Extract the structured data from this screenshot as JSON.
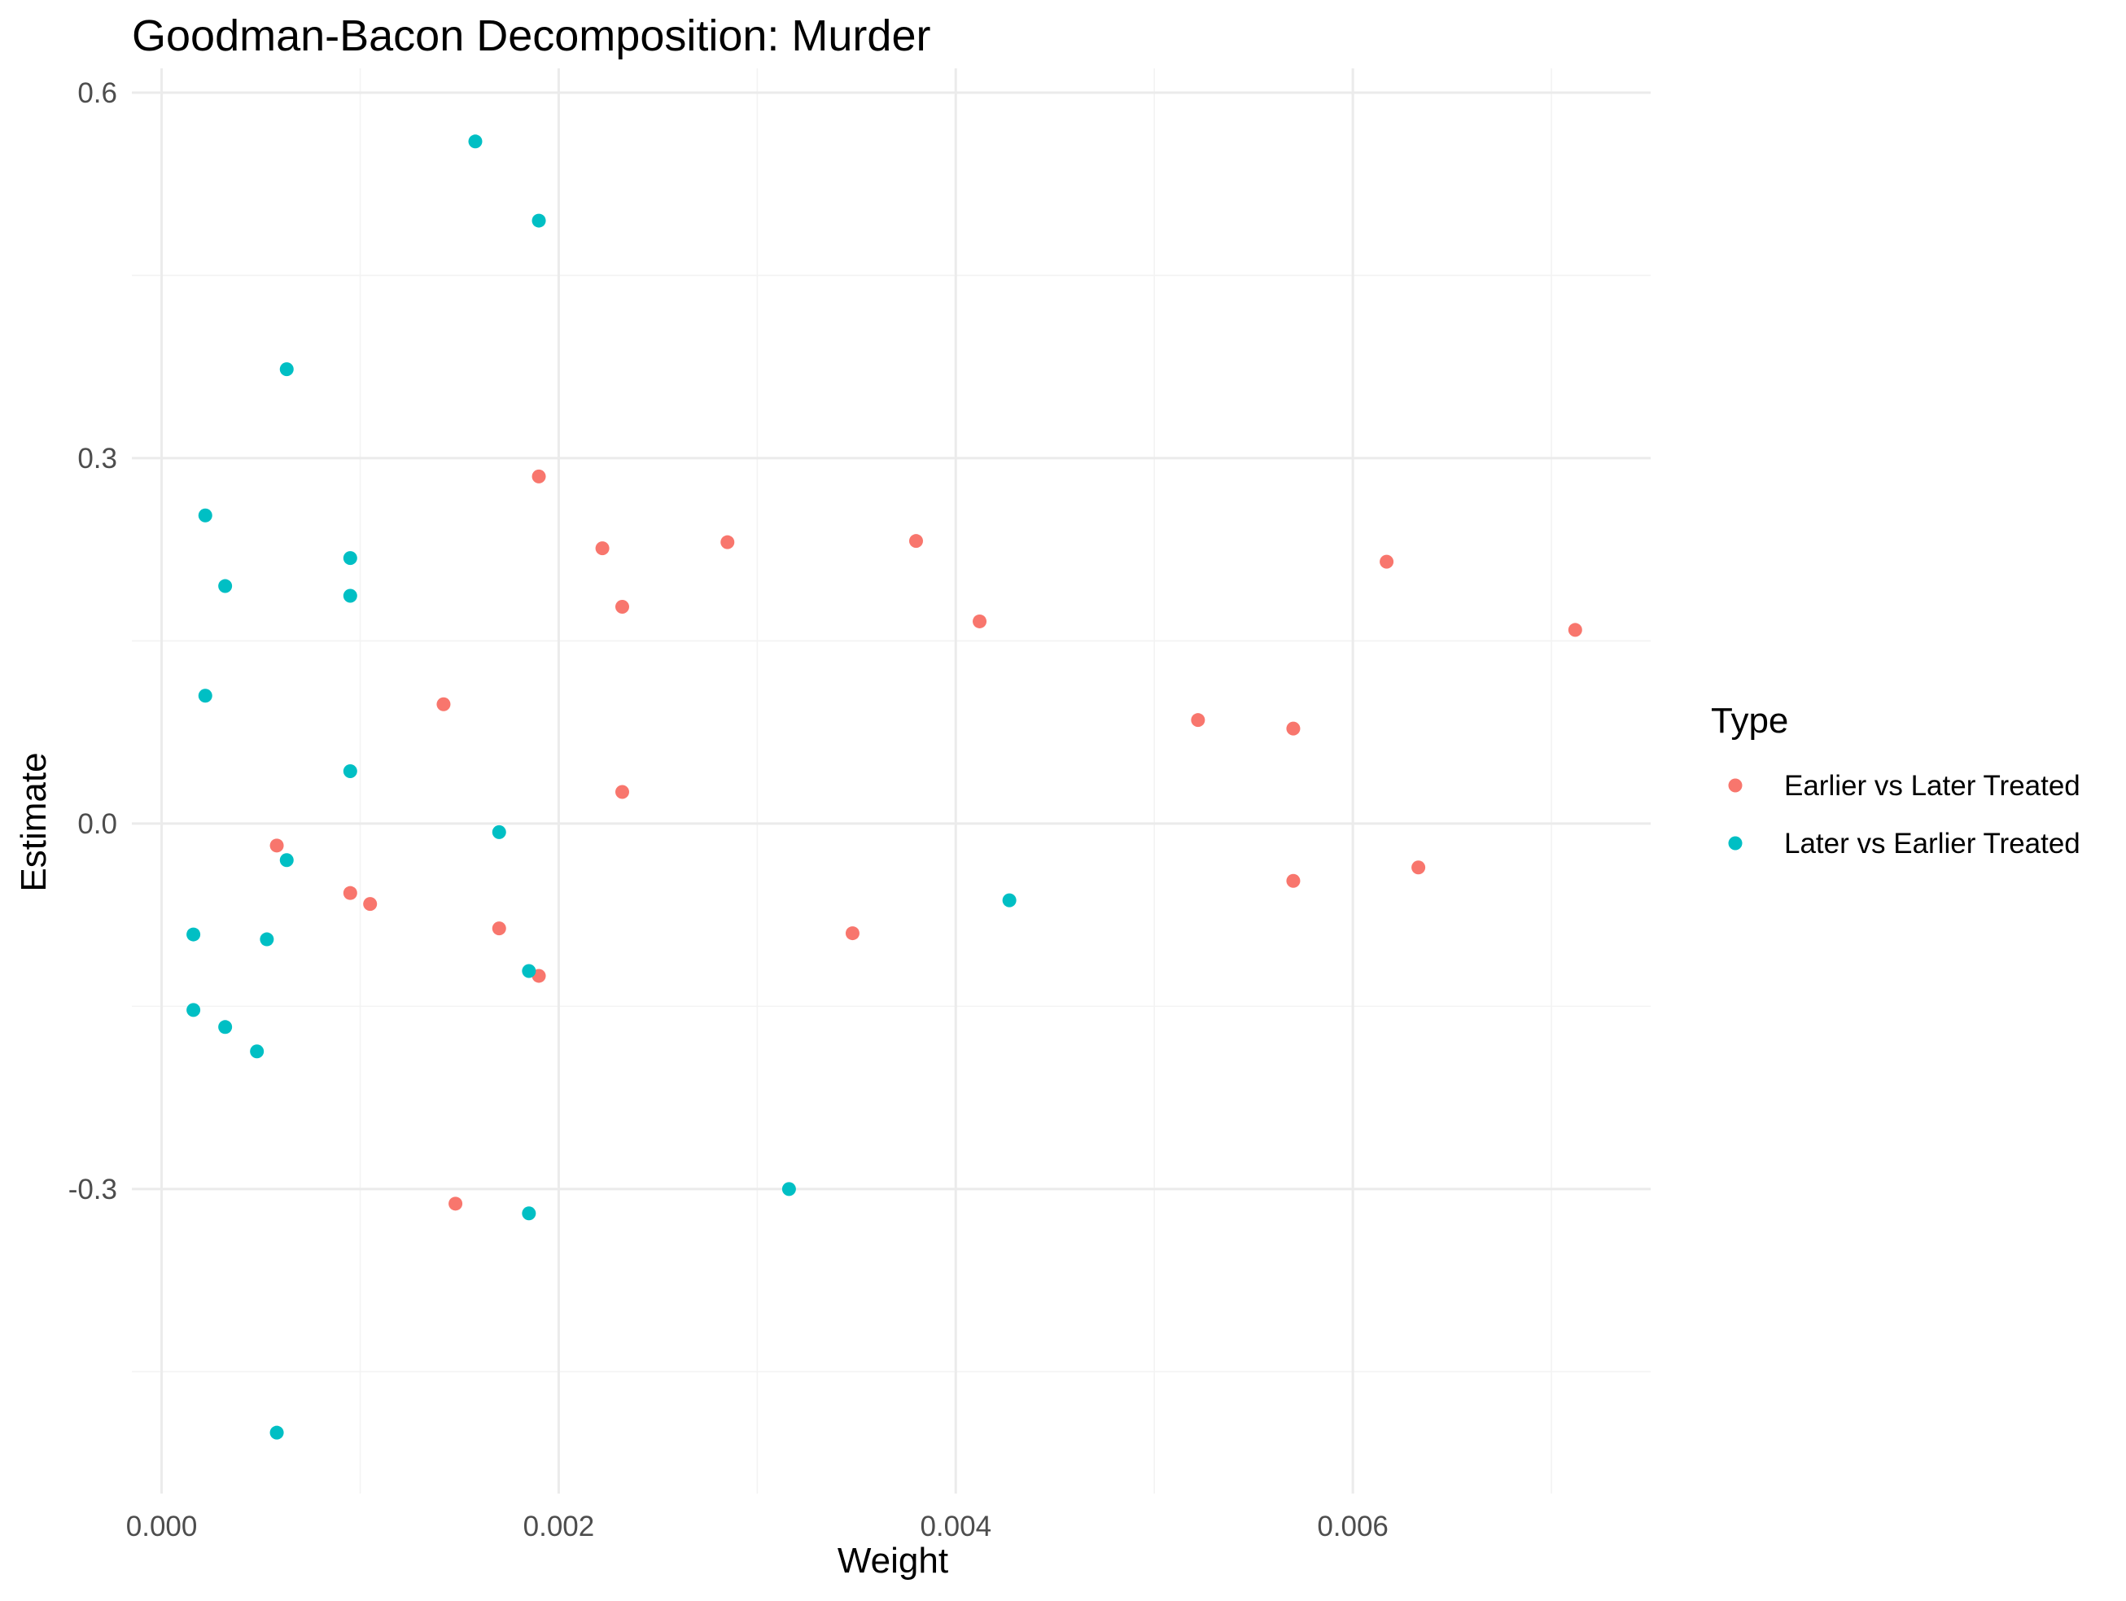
{
  "colors": {
    "background": "#ffffff",
    "grid_major": "#ebebeb",
    "grid_minor": "#f3f3f3",
    "tick_text": "#4d4d4d",
    "title_text": "#000000"
  },
  "chart_data": {
    "type": "scatter",
    "title": "Goodman-Bacon Decomposition: Murder",
    "xlabel": "Weight",
    "ylabel": "Estimate",
    "xlim": [
      -0.00015,
      0.0075
    ],
    "ylim": [
      -0.55,
      0.62
    ],
    "x_ticks": [
      0.0,
      0.002,
      0.004,
      0.006
    ],
    "x_tick_labels": [
      "0.000",
      "0.002",
      "0.004",
      "0.006"
    ],
    "x_minor_ticks": [
      0.001,
      0.003,
      0.005,
      0.007
    ],
    "y_ticks": [
      -0.3,
      0.0,
      0.3,
      0.6
    ],
    "y_tick_labels": [
      "-0.3",
      "0.0",
      "0.3",
      "0.6"
    ],
    "y_minor_ticks": [
      -0.45,
      -0.15,
      0.15,
      0.45
    ],
    "grid": true,
    "legend": {
      "title": "Type",
      "position": "right"
    },
    "series": [
      {
        "name": "Earlier vs Later Treated",
        "color": "#f8766d",
        "points": [
          {
            "x": 0.0019,
            "y": 0.285
          },
          {
            "x": 0.00222,
            "y": 0.226
          },
          {
            "x": 0.00285,
            "y": 0.231
          },
          {
            "x": 0.0038,
            "y": 0.232
          },
          {
            "x": 0.00232,
            "y": 0.178
          },
          {
            "x": 0.00412,
            "y": 0.166
          },
          {
            "x": 0.00617,
            "y": 0.215
          },
          {
            "x": 0.00712,
            "y": 0.159
          },
          {
            "x": 0.00142,
            "y": 0.098
          },
          {
            "x": 0.00232,
            "y": 0.026
          },
          {
            "x": 0.00522,
            "y": 0.085
          },
          {
            "x": 0.0057,
            "y": 0.078
          },
          {
            "x": 0.00058,
            "y": -0.018
          },
          {
            "x": 0.00095,
            "y": -0.057
          },
          {
            "x": 0.00105,
            "y": -0.066
          },
          {
            "x": 0.0017,
            "y": -0.086
          },
          {
            "x": 0.0019,
            "y": -0.125
          },
          {
            "x": 0.00348,
            "y": -0.09
          },
          {
            "x": 0.0057,
            "y": -0.047
          },
          {
            "x": 0.00633,
            "y": -0.036
          },
          {
            "x": 0.00148,
            "y": -0.312
          }
        ]
      },
      {
        "name": "Later vs Earlier Treated",
        "color": "#00bfc4",
        "points": [
          {
            "x": 0.00158,
            "y": 0.56
          },
          {
            "x": 0.0019,
            "y": 0.495
          },
          {
            "x": 0.00063,
            "y": 0.373
          },
          {
            "x": 0.00022,
            "y": 0.253
          },
          {
            "x": 0.00095,
            "y": 0.218
          },
          {
            "x": 0.00032,
            "y": 0.195
          },
          {
            "x": 0.00095,
            "y": 0.187
          },
          {
            "x": 0.00022,
            "y": 0.105
          },
          {
            "x": 0.00095,
            "y": 0.043
          },
          {
            "x": 0.0017,
            "y": -0.007
          },
          {
            "x": 0.00063,
            "y": -0.03
          },
          {
            "x": 0.00016,
            "y": -0.091
          },
          {
            "x": 0.00053,
            "y": -0.095
          },
          {
            "x": 0.00185,
            "y": -0.121
          },
          {
            "x": 0.00427,
            "y": -0.063
          },
          {
            "x": 0.00016,
            "y": -0.153
          },
          {
            "x": 0.00032,
            "y": -0.167
          },
          {
            "x": 0.00048,
            "y": -0.187
          },
          {
            "x": 0.00316,
            "y": -0.3
          },
          {
            "x": 0.00185,
            "y": -0.32
          },
          {
            "x": 0.00058,
            "y": -0.5
          }
        ]
      }
    ]
  }
}
